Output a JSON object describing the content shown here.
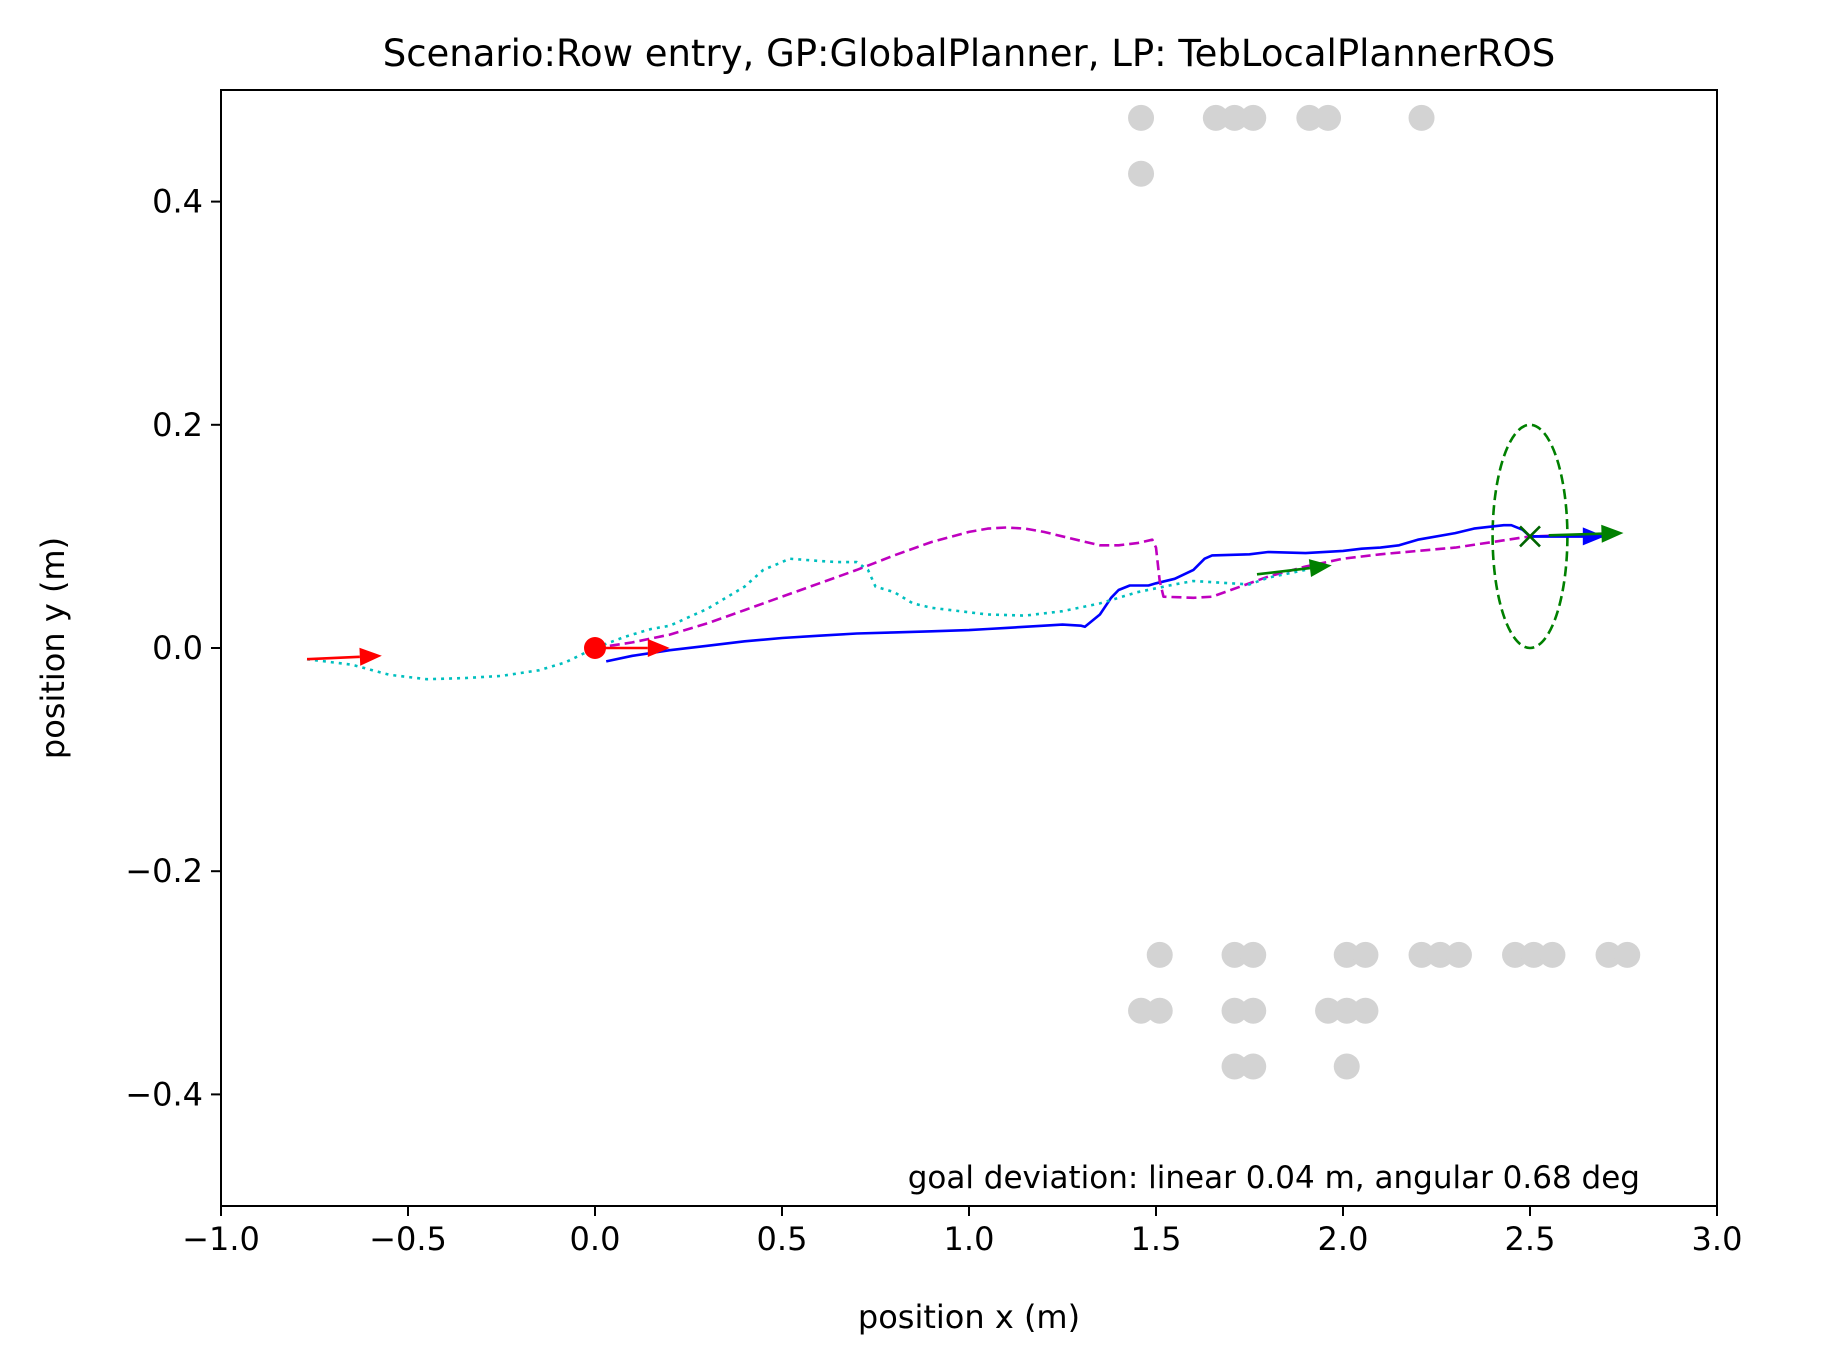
{
  "chart_data": {
    "type": "scatter",
    "title": "Scenario:Row entry, GP:GlobalPlanner, LP: TebLocalPlannerROS",
    "xlabel": "position x (m)",
    "ylabel": "position y (m)",
    "xlim": [
      -1.0,
      3.0
    ],
    "ylim": [
      -0.5,
      0.5
    ],
    "xticks": [
      -1.0,
      -0.5,
      0.0,
      0.5,
      1.0,
      1.5,
      2.0,
      2.5,
      3.0
    ],
    "xtick_labels": [
      "−1.0",
      "−0.5",
      "0.0",
      "0.5",
      "1.0",
      "1.5",
      "2.0",
      "2.5",
      "3.0"
    ],
    "yticks": [
      0.4,
      0.2,
      0.0,
      -0.2,
      -0.4
    ],
    "ytick_labels": [
      "0.4",
      "0.2",
      "0.0",
      "−0.2",
      "−0.4"
    ],
    "grid": false,
    "annotation": "goal deviation: linear 0.04 m, angular 0.68 deg",
    "colors": {
      "obstacle": "#d3d3d3",
      "robot_path": "#0000ff",
      "global_plan": "#bf00bf",
      "odometry": "#00bfbf",
      "start": "#ff0000",
      "goal": "#008000"
    },
    "series": [
      {
        "style": "solid",
        "color": "#0000ff",
        "points": [
          [
            0.03,
            -0.012
          ],
          [
            0.1,
            -0.007
          ],
          [
            0.2,
            -0.002
          ],
          [
            0.3,
            0.002
          ],
          [
            0.4,
            0.006
          ],
          [
            0.5,
            0.009
          ],
          [
            0.6,
            0.011
          ],
          [
            0.7,
            0.013
          ],
          [
            0.8,
            0.014
          ],
          [
            0.9,
            0.015
          ],
          [
            1.0,
            0.016
          ],
          [
            1.05,
            0.017
          ],
          [
            1.1,
            0.018
          ],
          [
            1.2,
            0.02
          ],
          [
            1.25,
            0.021
          ],
          [
            1.3,
            0.02
          ],
          [
            1.31,
            0.019
          ],
          [
            1.35,
            0.03
          ],
          [
            1.38,
            0.045
          ],
          [
            1.4,
            0.052
          ],
          [
            1.43,
            0.056
          ],
          [
            1.48,
            0.056
          ],
          [
            1.5,
            0.058
          ],
          [
            1.55,
            0.062
          ],
          [
            1.6,
            0.07
          ],
          [
            1.63,
            0.08
          ],
          [
            1.65,
            0.083
          ],
          [
            1.75,
            0.084
          ],
          [
            1.8,
            0.086
          ],
          [
            1.9,
            0.085
          ],
          [
            2.0,
            0.087
          ],
          [
            2.05,
            0.089
          ],
          [
            2.1,
            0.09
          ],
          [
            2.15,
            0.092
          ],
          [
            2.2,
            0.097
          ],
          [
            2.3,
            0.103
          ],
          [
            2.35,
            0.107
          ],
          [
            2.4,
            0.109
          ],
          [
            2.43,
            0.11
          ],
          [
            2.45,
            0.11
          ],
          [
            2.48,
            0.106
          ],
          [
            2.5,
            0.1
          ],
          [
            2.55,
            0.1
          ],
          [
            2.6,
            0.1
          ],
          [
            2.7,
            0.1
          ]
        ]
      },
      {
        "style": "dashed",
        "color": "#bf00bf",
        "points": [
          [
            0.0,
            0.0
          ],
          [
            0.1,
            0.005
          ],
          [
            0.2,
            0.012
          ],
          [
            0.3,
            0.022
          ],
          [
            0.4,
            0.034
          ],
          [
            0.5,
            0.046
          ],
          [
            0.6,
            0.058
          ],
          [
            0.7,
            0.07
          ],
          [
            0.8,
            0.083
          ],
          [
            0.9,
            0.095
          ],
          [
            1.0,
            0.104
          ],
          [
            1.05,
            0.107
          ],
          [
            1.1,
            0.108
          ],
          [
            1.15,
            0.107
          ],
          [
            1.2,
            0.104
          ],
          [
            1.3,
            0.096
          ],
          [
            1.35,
            0.092
          ],
          [
            1.4,
            0.092
          ],
          [
            1.45,
            0.094
          ],
          [
            1.49,
            0.097
          ],
          [
            1.5,
            0.09
          ],
          [
            1.51,
            0.06
          ],
          [
            1.52,
            0.046
          ],
          [
            1.6,
            0.045
          ],
          [
            1.65,
            0.046
          ],
          [
            1.7,
            0.052
          ],
          [
            1.8,
            0.064
          ],
          [
            1.9,
            0.073
          ],
          [
            2.0,
            0.08
          ],
          [
            2.1,
            0.084
          ],
          [
            2.2,
            0.087
          ],
          [
            2.3,
            0.09
          ],
          [
            2.4,
            0.095
          ],
          [
            2.5,
            0.1
          ],
          [
            2.6,
            0.101
          ]
        ]
      },
      {
        "style": "dotted",
        "color": "#00bfbf",
        "points": [
          [
            -0.77,
            -0.01
          ],
          [
            -0.65,
            -0.015
          ],
          [
            -0.55,
            -0.024
          ],
          [
            -0.45,
            -0.028
          ],
          [
            -0.35,
            -0.027
          ],
          [
            -0.25,
            -0.025
          ],
          [
            -0.15,
            -0.02
          ],
          [
            -0.08,
            -0.013
          ],
          [
            0.0,
            0.0
          ],
          [
            0.08,
            0.01
          ],
          [
            0.15,
            0.017
          ],
          [
            0.2,
            0.02
          ],
          [
            0.3,
            0.035
          ],
          [
            0.35,
            0.045
          ],
          [
            0.4,
            0.055
          ],
          [
            0.45,
            0.07
          ],
          [
            0.5,
            0.077
          ],
          [
            0.52,
            0.08
          ],
          [
            0.6,
            0.078
          ],
          [
            0.65,
            0.077
          ],
          [
            0.7,
            0.077
          ],
          [
            0.73,
            0.07
          ],
          [
            0.75,
            0.055
          ],
          [
            0.8,
            0.05
          ],
          [
            0.85,
            0.04
          ],
          [
            0.9,
            0.036
          ],
          [
            1.0,
            0.032
          ],
          [
            1.05,
            0.03
          ],
          [
            1.15,
            0.029
          ],
          [
            1.25,
            0.033
          ],
          [
            1.35,
            0.04
          ],
          [
            1.45,
            0.05
          ],
          [
            1.55,
            0.057
          ],
          [
            1.6,
            0.06
          ],
          [
            1.7,
            0.058
          ],
          [
            1.75,
            0.057
          ],
          [
            1.8,
            0.063
          ],
          [
            1.9,
            0.07
          ]
        ]
      }
    ],
    "arrows": [
      {
        "color": "#ff0000",
        "from": [
          -0.77,
          -0.01
        ],
        "to": [
          -0.57,
          -0.007
        ]
      },
      {
        "color": "#ff0000",
        "from": [
          0.0,
          0.0
        ],
        "to": [
          0.2,
          0.0
        ]
      },
      {
        "color": "#008000",
        "from": [
          1.77,
          0.066
        ],
        "to": [
          1.97,
          0.074
        ]
      },
      {
        "color": "#0000ff",
        "from": [
          2.5,
          0.1
        ],
        "to": [
          2.7,
          0.1
        ]
      },
      {
        "color": "#008000",
        "from": [
          2.55,
          0.101
        ],
        "to": [
          2.75,
          0.103
        ]
      }
    ],
    "start_marker": {
      "x": 0.0,
      "y": 0.0,
      "color": "#ff0000"
    },
    "goal_marker": {
      "x": 2.5,
      "y": 0.1,
      "color": "#006400"
    },
    "goal_tolerance_ellipse": {
      "cx": 2.5,
      "cy": 0.1,
      "rx": 0.1,
      "ry": 0.1,
      "color": "#008000"
    },
    "obstacles": [
      [
        1.46,
        0.475
      ],
      [
        1.66,
        0.475
      ],
      [
        1.71,
        0.475
      ],
      [
        1.76,
        0.475
      ],
      [
        1.91,
        0.475
      ],
      [
        1.96,
        0.475
      ],
      [
        2.21,
        0.475
      ],
      [
        1.46,
        0.425
      ],
      [
        1.51,
        -0.275
      ],
      [
        1.71,
        -0.275
      ],
      [
        1.76,
        -0.275
      ],
      [
        2.01,
        -0.275
      ],
      [
        2.06,
        -0.275
      ],
      [
        2.21,
        -0.275
      ],
      [
        2.26,
        -0.275
      ],
      [
        2.31,
        -0.275
      ],
      [
        2.46,
        -0.275
      ],
      [
        2.51,
        -0.275
      ],
      [
        2.56,
        -0.275
      ],
      [
        2.71,
        -0.275
      ],
      [
        2.76,
        -0.275
      ],
      [
        1.46,
        -0.325
      ],
      [
        1.51,
        -0.325
      ],
      [
        1.71,
        -0.325
      ],
      [
        1.76,
        -0.325
      ],
      [
        1.96,
        -0.325
      ],
      [
        2.01,
        -0.325
      ],
      [
        2.06,
        -0.325
      ],
      [
        1.71,
        -0.375
      ],
      [
        1.76,
        -0.375
      ],
      [
        2.01,
        -0.375
      ]
    ]
  }
}
